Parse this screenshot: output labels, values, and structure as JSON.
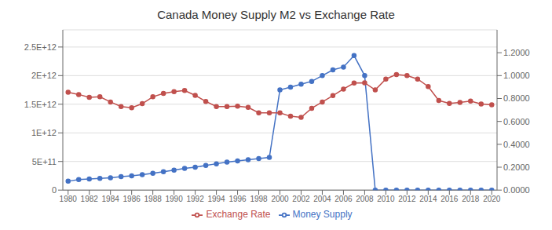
{
  "chart_data": {
    "type": "line",
    "title": "Canada Money Supply M2 vs Exchange Rate",
    "x": [
      1980,
      1981,
      1982,
      1983,
      1984,
      1985,
      1986,
      1987,
      1988,
      1989,
      1990,
      1991,
      1992,
      1993,
      1994,
      1995,
      1996,
      1997,
      1998,
      1999,
      2000,
      2001,
      2002,
      2003,
      2004,
      2005,
      2006,
      2007,
      2008,
      2009,
      2010,
      2011,
      2012,
      2013,
      2014,
      2015,
      2016,
      2017,
      2018,
      2019,
      2020
    ],
    "series": [
      {
        "name": "Money Supply",
        "color": "#4472C4",
        "marker": "circle",
        "values": [
          155000000000.0,
          185000000000.0,
          195000000000.0,
          205000000000.0,
          215000000000.0,
          235000000000.0,
          250000000000.0,
          270000000000.0,
          295000000000.0,
          320000000000.0,
          350000000000.0,
          380000000000.0,
          400000000000.0,
          430000000000.0,
          460000000000.0,
          490000000000.0,
          510000000000.0,
          530000000000.0,
          550000000000.0,
          570000000000.0,
          1750000000000.0,
          1800000000000.0,
          1850000000000.0,
          1900000000000.0,
          2000000000000.0,
          2100000000000.0,
          2150000000000.0,
          2350000000000.0,
          2000000000000.0,
          0,
          0,
          0,
          0,
          0,
          0,
          0,
          0,
          0,
          0,
          0,
          0
        ]
      },
      {
        "name": "Exchange Rate",
        "color": "#C0504D",
        "marker": "circle",
        "axis": "y2",
        "values": [
          0.855,
          0.835,
          0.81,
          0.815,
          0.77,
          0.73,
          0.72,
          0.755,
          0.815,
          0.845,
          0.86,
          0.87,
          0.8275,
          0.775,
          0.73,
          0.73,
          0.7325,
          0.7225,
          0.675,
          0.675,
          0.675,
          0.645,
          0.635,
          0.715,
          0.77,
          0.825,
          0.8825,
          0.935,
          0.9375,
          0.875,
          0.97,
          1.01,
          1.0,
          0.97,
          0.905,
          0.7825,
          0.7575,
          0.765,
          0.7775,
          0.7525,
          0.745
        ]
      }
    ],
    "xlim": [
      1979.5,
      2020.5
    ],
    "xticks": [
      1980,
      1982,
      1984,
      1986,
      1988,
      1990,
      1992,
      1994,
      1996,
      1998,
      2000,
      2002,
      2004,
      2006,
      2008,
      2010,
      2012,
      2014,
      2016,
      2018,
      2020
    ],
    "ylim": [
      0,
      2800000000000.0
    ],
    "yticks": [
      0,
      {
        "value": 500000000000.0,
        "label": "5E+11"
      },
      {
        "value": 1000000000000.0,
        "label": "1E+12"
      },
      {
        "value": 1500000000000.0,
        "label": "1.5E+12"
      },
      {
        "value": 2000000000000.0,
        "label": "2E+12"
      },
      {
        "value": 2500000000000.0,
        "label": "2.5E+12"
      }
    ],
    "y2lim": [
      0.0,
      1.4
    ],
    "y2ticks": [
      {
        "value": 0.0,
        "label": "0.0000"
      },
      {
        "value": 0.2,
        "label": "0.2000"
      },
      {
        "value": 0.4,
        "label": "0.4000"
      },
      {
        "value": 0.6,
        "label": "0.6000"
      },
      {
        "value": 0.8,
        "label": "0.8000"
      },
      {
        "value": 1.0,
        "label": "1.0000"
      },
      {
        "value": 1.2,
        "label": "1.2000"
      }
    ],
    "grid": true,
    "legend": "bottom"
  }
}
